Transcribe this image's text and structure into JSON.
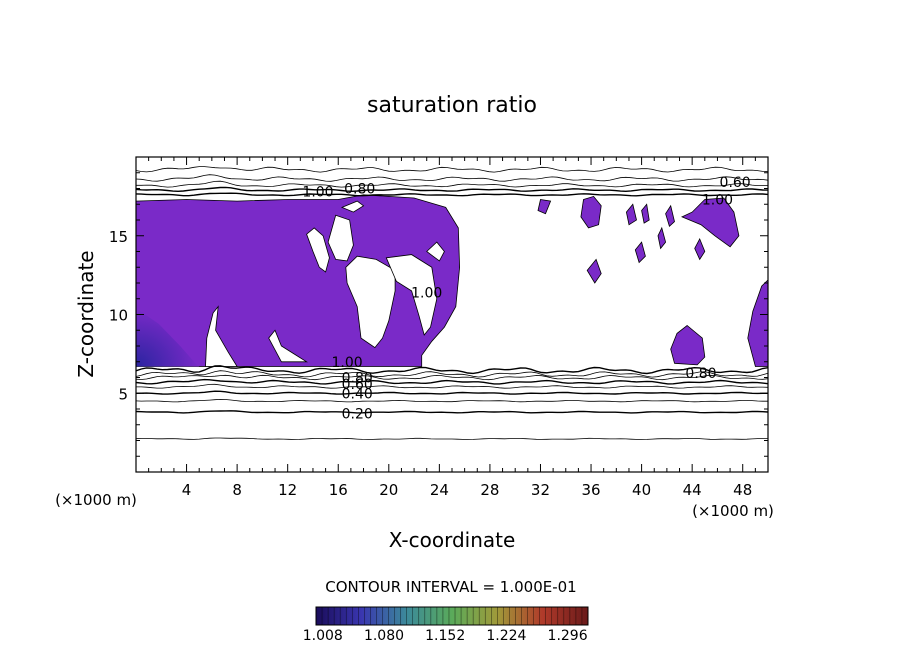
{
  "chart_data": {
    "type": "contour",
    "title": "saturation ratio",
    "xlabel": "X-coordinate",
    "ylabel": "Z-coordinate",
    "x_unit_left": "(×1000 m)",
    "x_unit_right": "(×1000 m)",
    "xlim": [
      0,
      50
    ],
    "ylim": [
      0,
      20
    ],
    "x_ticks": [
      4,
      8,
      12,
      16,
      20,
      24,
      28,
      32,
      36,
      40,
      44,
      48
    ],
    "x_tick_labels": [
      "4",
      "8",
      "12",
      "16",
      "20",
      "24",
      "28",
      "32",
      "36",
      "40",
      "44",
      "48"
    ],
    "y_ticks": [
      5,
      10,
      15
    ],
    "y_tick_labels": [
      "5",
      "10",
      "15"
    ],
    "contour_interval_text": "CONTOUR INTERVAL = 1.000E-01",
    "contour_labels": [
      {
        "text": "0.20",
        "x": 17.5,
        "z": 3.7
      },
      {
        "text": "0.40",
        "x": 17.5,
        "z": 5.0
      },
      {
        "text": "0.60",
        "x": 17.5,
        "z": 5.6
      },
      {
        "text": "0.80",
        "x": 17.5,
        "z": 6.0
      },
      {
        "text": "1.00",
        "x": 16.7,
        "z": 7.0
      },
      {
        "text": "0.80",
        "x": 44.7,
        "z": 6.3
      },
      {
        "text": "1.00",
        "x": 23.0,
        "z": 11.4
      },
      {
        "text": "1.00",
        "x": 14.4,
        "z": 17.8
      },
      {
        "text": "0.80",
        "x": 17.7,
        "z": 18.0
      },
      {
        "text": "0.60",
        "x": 47.4,
        "z": 18.4
      },
      {
        "text": "1.00",
        "x": 46.0,
        "z": 17.3
      }
    ],
    "colorbar": {
      "ticks": [
        1.008,
        1.08,
        1.152,
        1.224,
        1.296
      ],
      "tick_labels": [
        "1.008",
        "1.080",
        "1.152",
        "1.224",
        "1.296"
      ],
      "range": [
        1.0,
        1.32
      ],
      "colors": [
        "#1a0c5a",
        "#3a36b0",
        "#3c8a9a",
        "#5aaa5a",
        "#a09a3a",
        "#b03a2a",
        "#6a1a1a"
      ]
    },
    "fill_color": "#7a2ac8",
    "fill_color_dark": "#2a24a0"
  }
}
